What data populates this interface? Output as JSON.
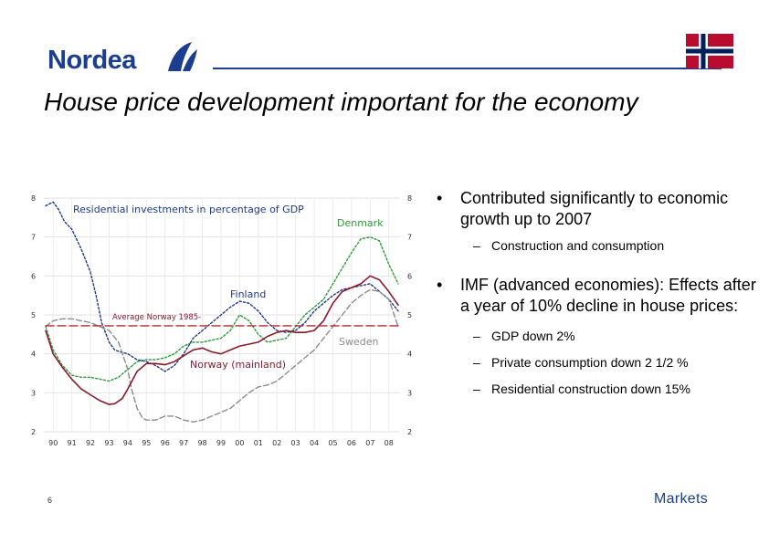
{
  "header": {
    "logo_text": "Nordea",
    "title": "House price development important for the economy"
  },
  "bullets": [
    {
      "text": "Contributed significantly to economic growth up to 2007",
      "subs": [
        "Construction and consumption"
      ]
    },
    {
      "text": "IMF (advanced economies): Effects after a year of 10% decline in house prices:",
      "subs": [
        "GDP down 2%",
        "Private consumption down 2 1/2 %",
        "Residential construction down 15%"
      ]
    }
  ],
  "footer": {
    "page_number": "6",
    "brand": "Markets"
  },
  "colors": {
    "brand_blue": "#1b3f8e",
    "flag_red": "#ba0c2f",
    "flag_blue": "#00205b"
  },
  "chart_data": {
    "type": "line",
    "title": "Residential investments in percentage of GDP",
    "x_tick_labels": [
      "90",
      "91",
      "92",
      "93",
      "94",
      "95",
      "96",
      "97",
      "98",
      "99",
      "00",
      "01",
      "02",
      "03",
      "04",
      "05",
      "06",
      "07",
      "08"
    ],
    "xlim": [
      1989.5,
      2008.6
    ],
    "ylim": [
      2,
      8
    ],
    "y_ticks": [
      2,
      3,
      4,
      5,
      6,
      7,
      8
    ],
    "grid": true,
    "series": [
      {
        "name": "Denmark",
        "color": "#2e9a3a",
        "style": "dotted",
        "x": [
          1989.6,
          1990,
          1990.5,
          1991,
          1991.5,
          1992,
          1992.5,
          1993,
          1993.5,
          1994,
          1994.5,
          1995,
          1995.5,
          1996,
          1996.5,
          1997,
          1997.5,
          1998,
          1998.5,
          1999,
          1999.5,
          2000,
          2000.5,
          2001,
          2001.5,
          2002,
          2002.5,
          2003,
          2003.5,
          2004,
          2004.5,
          2005,
          2005.5,
          2006,
          2006.5,
          2007,
          2007.5,
          2008,
          2008.5
        ],
        "y": [
          4.7,
          4.1,
          3.7,
          3.45,
          3.4,
          3.4,
          3.35,
          3.3,
          3.4,
          3.6,
          3.8,
          3.85,
          3.85,
          3.9,
          4.0,
          4.2,
          4.3,
          4.3,
          4.35,
          4.4,
          4.6,
          5.0,
          4.85,
          4.5,
          4.3,
          4.35,
          4.4,
          4.7,
          5.0,
          5.2,
          5.4,
          5.8,
          6.2,
          6.6,
          6.95,
          7.0,
          6.9,
          6.3,
          5.8
        ]
      },
      {
        "name": "Finland",
        "color": "#1f3a8a",
        "style": "dotted",
        "x": [
          1989.6,
          1989.8,
          1990,
          1990.3,
          1990.6,
          1991,
          1991.5,
          1992,
          1992.3,
          1992.6,
          1993,
          1993.3,
          1993.6,
          1994,
          1994.5,
          1995,
          1995.5,
          1996,
          1996.5,
          1997,
          1997.5,
          1998,
          1998.5,
          1999,
          1999.5,
          2000,
          2000.5,
          2001,
          2001.5,
          2002,
          2002.5,
          2003,
          2003.5,
          2004,
          2004.5,
          2005,
          2005.5,
          2006,
          2006.5,
          2007,
          2007.5,
          2008,
          2008.5
        ],
        "y": [
          7.8,
          7.85,
          7.9,
          7.7,
          7.4,
          7.2,
          6.7,
          6.1,
          5.5,
          4.8,
          4.3,
          4.1,
          4.05,
          4.0,
          3.85,
          3.8,
          3.7,
          3.55,
          3.7,
          4.0,
          4.4,
          4.6,
          4.8,
          5.0,
          5.2,
          5.35,
          5.3,
          5.1,
          4.8,
          4.6,
          4.55,
          4.6,
          4.8,
          5.1,
          5.3,
          5.5,
          5.65,
          5.7,
          5.75,
          5.8,
          5.6,
          5.4,
          5.1
        ]
      },
      {
        "name": "Sweden",
        "color": "#8c8c8c",
        "style": "dashed",
        "x": [
          1989.6,
          1990,
          1990.5,
          1991,
          1991.5,
          1992,
          1992.5,
          1993,
          1993.5,
          1994,
          1994.2,
          1994.5,
          1994.8,
          1995,
          1995.5,
          1996,
          1996.5,
          1997,
          1997.5,
          1998,
          1998.5,
          1999,
          1999.5,
          2000,
          2000.5,
          2001,
          2001.5,
          2002,
          2002.5,
          2003,
          2003.5,
          2004,
          2004.5,
          2005,
          2005.5,
          2006,
          2006.5,
          2007,
          2007.5,
          2008,
          2008.5
        ],
        "y": [
          4.7,
          4.85,
          4.9,
          4.9,
          4.85,
          4.8,
          4.7,
          4.6,
          4.3,
          3.6,
          3.1,
          2.6,
          2.35,
          2.3,
          2.3,
          2.4,
          2.4,
          2.3,
          2.25,
          2.3,
          2.4,
          2.5,
          2.6,
          2.8,
          3.0,
          3.15,
          3.2,
          3.3,
          3.5,
          3.7,
          3.9,
          4.1,
          4.4,
          4.7,
          5.0,
          5.3,
          5.5,
          5.65,
          5.6,
          5.4,
          4.7
        ]
      },
      {
        "name": "Norway (mainland)",
        "color": "#8b1a2b",
        "style": "solid",
        "x": [
          1989.6,
          1990,
          1990.5,
          1991,
          1991.5,
          1992,
          1992.5,
          1993,
          1993.3,
          1993.7,
          1994,
          1994.5,
          1995,
          1995.5,
          1996,
          1996.5,
          1997,
          1997.5,
          1998,
          1998.5,
          1999,
          1999.5,
          2000,
          2000.5,
          2001,
          2001.5,
          2002,
          2002.5,
          2003,
          2003.5,
          2004,
          2004.5,
          2005,
          2005.5,
          2006,
          2006.5,
          2007,
          2007.5,
          2008,
          2008.5
        ],
        "y": [
          4.6,
          4.0,
          3.65,
          3.35,
          3.1,
          2.95,
          2.8,
          2.7,
          2.72,
          2.85,
          3.1,
          3.55,
          3.75,
          3.75,
          3.72,
          3.8,
          3.95,
          4.1,
          4.15,
          4.05,
          4.0,
          4.1,
          4.2,
          4.25,
          4.3,
          4.45,
          4.55,
          4.6,
          4.55,
          4.55,
          4.6,
          4.85,
          5.3,
          5.6,
          5.7,
          5.8,
          6.0,
          5.9,
          5.6,
          5.25
        ]
      },
      {
        "name": "Average Norway 1985-",
        "color": "#b32a2a",
        "style": "long-dash",
        "x": [
          1989.6,
          2008.5
        ],
        "y": [
          4.72,
          4.72
        ]
      }
    ]
  }
}
